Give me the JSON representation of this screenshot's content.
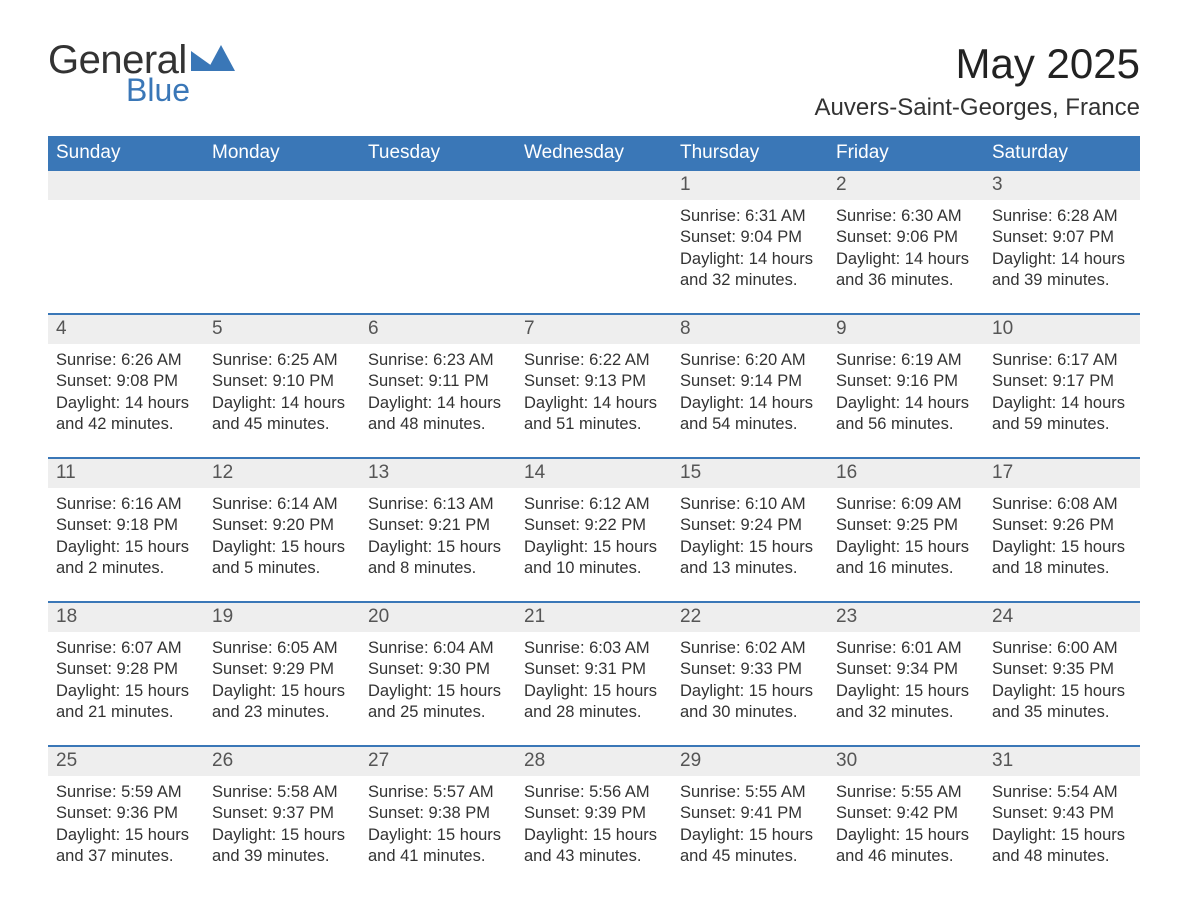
{
  "brand": {
    "text1": "General",
    "text2": "Blue",
    "shape_color": "#3a77b7",
    "text1_color": "#333333",
    "text2_color": "#3a77b7"
  },
  "header": {
    "month_title": "May 2025",
    "location": "Auvers-Saint-Georges, France"
  },
  "colors": {
    "header_bg": "#3a77b7",
    "daynum_bg": "#eeeeee",
    "week_divider": "#3a77b7",
    "page_bg": "#ffffff",
    "text": "#333333",
    "header_text": "#ffffff"
  },
  "daysOfWeek": [
    "Sunday",
    "Monday",
    "Tuesday",
    "Wednesday",
    "Thursday",
    "Friday",
    "Saturday"
  ],
  "labels": {
    "sunrise": "Sunrise:",
    "sunset": "Sunset:",
    "daylight": "Daylight:"
  },
  "weeks": [
    [
      null,
      null,
      null,
      null,
      {
        "n": "1",
        "sunrise": "6:31 AM",
        "sunset": "9:04 PM",
        "daylight": "14 hours and 32 minutes."
      },
      {
        "n": "2",
        "sunrise": "6:30 AM",
        "sunset": "9:06 PM",
        "daylight": "14 hours and 36 minutes."
      },
      {
        "n": "3",
        "sunrise": "6:28 AM",
        "sunset": "9:07 PM",
        "daylight": "14 hours and 39 minutes."
      }
    ],
    [
      {
        "n": "4",
        "sunrise": "6:26 AM",
        "sunset": "9:08 PM",
        "daylight": "14 hours and 42 minutes."
      },
      {
        "n": "5",
        "sunrise": "6:25 AM",
        "sunset": "9:10 PM",
        "daylight": "14 hours and 45 minutes."
      },
      {
        "n": "6",
        "sunrise": "6:23 AM",
        "sunset": "9:11 PM",
        "daylight": "14 hours and 48 minutes."
      },
      {
        "n": "7",
        "sunrise": "6:22 AM",
        "sunset": "9:13 PM",
        "daylight": "14 hours and 51 minutes."
      },
      {
        "n": "8",
        "sunrise": "6:20 AM",
        "sunset": "9:14 PM",
        "daylight": "14 hours and 54 minutes."
      },
      {
        "n": "9",
        "sunrise": "6:19 AM",
        "sunset": "9:16 PM",
        "daylight": "14 hours and 56 minutes."
      },
      {
        "n": "10",
        "sunrise": "6:17 AM",
        "sunset": "9:17 PM",
        "daylight": "14 hours and 59 minutes."
      }
    ],
    [
      {
        "n": "11",
        "sunrise": "6:16 AM",
        "sunset": "9:18 PM",
        "daylight": "15 hours and 2 minutes."
      },
      {
        "n": "12",
        "sunrise": "6:14 AM",
        "sunset": "9:20 PM",
        "daylight": "15 hours and 5 minutes."
      },
      {
        "n": "13",
        "sunrise": "6:13 AM",
        "sunset": "9:21 PM",
        "daylight": "15 hours and 8 minutes."
      },
      {
        "n": "14",
        "sunrise": "6:12 AM",
        "sunset": "9:22 PM",
        "daylight": "15 hours and 10 minutes."
      },
      {
        "n": "15",
        "sunrise": "6:10 AM",
        "sunset": "9:24 PM",
        "daylight": "15 hours and 13 minutes."
      },
      {
        "n": "16",
        "sunrise": "6:09 AM",
        "sunset": "9:25 PM",
        "daylight": "15 hours and 16 minutes."
      },
      {
        "n": "17",
        "sunrise": "6:08 AM",
        "sunset": "9:26 PM",
        "daylight": "15 hours and 18 minutes."
      }
    ],
    [
      {
        "n": "18",
        "sunrise": "6:07 AM",
        "sunset": "9:28 PM",
        "daylight": "15 hours and 21 minutes."
      },
      {
        "n": "19",
        "sunrise": "6:05 AM",
        "sunset": "9:29 PM",
        "daylight": "15 hours and 23 minutes."
      },
      {
        "n": "20",
        "sunrise": "6:04 AM",
        "sunset": "9:30 PM",
        "daylight": "15 hours and 25 minutes."
      },
      {
        "n": "21",
        "sunrise": "6:03 AM",
        "sunset": "9:31 PM",
        "daylight": "15 hours and 28 minutes."
      },
      {
        "n": "22",
        "sunrise": "6:02 AM",
        "sunset": "9:33 PM",
        "daylight": "15 hours and 30 minutes."
      },
      {
        "n": "23",
        "sunrise": "6:01 AM",
        "sunset": "9:34 PM",
        "daylight": "15 hours and 32 minutes."
      },
      {
        "n": "24",
        "sunrise": "6:00 AM",
        "sunset": "9:35 PM",
        "daylight": "15 hours and 35 minutes."
      }
    ],
    [
      {
        "n": "25",
        "sunrise": "5:59 AM",
        "sunset": "9:36 PM",
        "daylight": "15 hours and 37 minutes."
      },
      {
        "n": "26",
        "sunrise": "5:58 AM",
        "sunset": "9:37 PM",
        "daylight": "15 hours and 39 minutes."
      },
      {
        "n": "27",
        "sunrise": "5:57 AM",
        "sunset": "9:38 PM",
        "daylight": "15 hours and 41 minutes."
      },
      {
        "n": "28",
        "sunrise": "5:56 AM",
        "sunset": "9:39 PM",
        "daylight": "15 hours and 43 minutes."
      },
      {
        "n": "29",
        "sunrise": "5:55 AM",
        "sunset": "9:41 PM",
        "daylight": "15 hours and 45 minutes."
      },
      {
        "n": "30",
        "sunrise": "5:55 AM",
        "sunset": "9:42 PM",
        "daylight": "15 hours and 46 minutes."
      },
      {
        "n": "31",
        "sunrise": "5:54 AM",
        "sunset": "9:43 PM",
        "daylight": "15 hours and 48 minutes."
      }
    ]
  ]
}
